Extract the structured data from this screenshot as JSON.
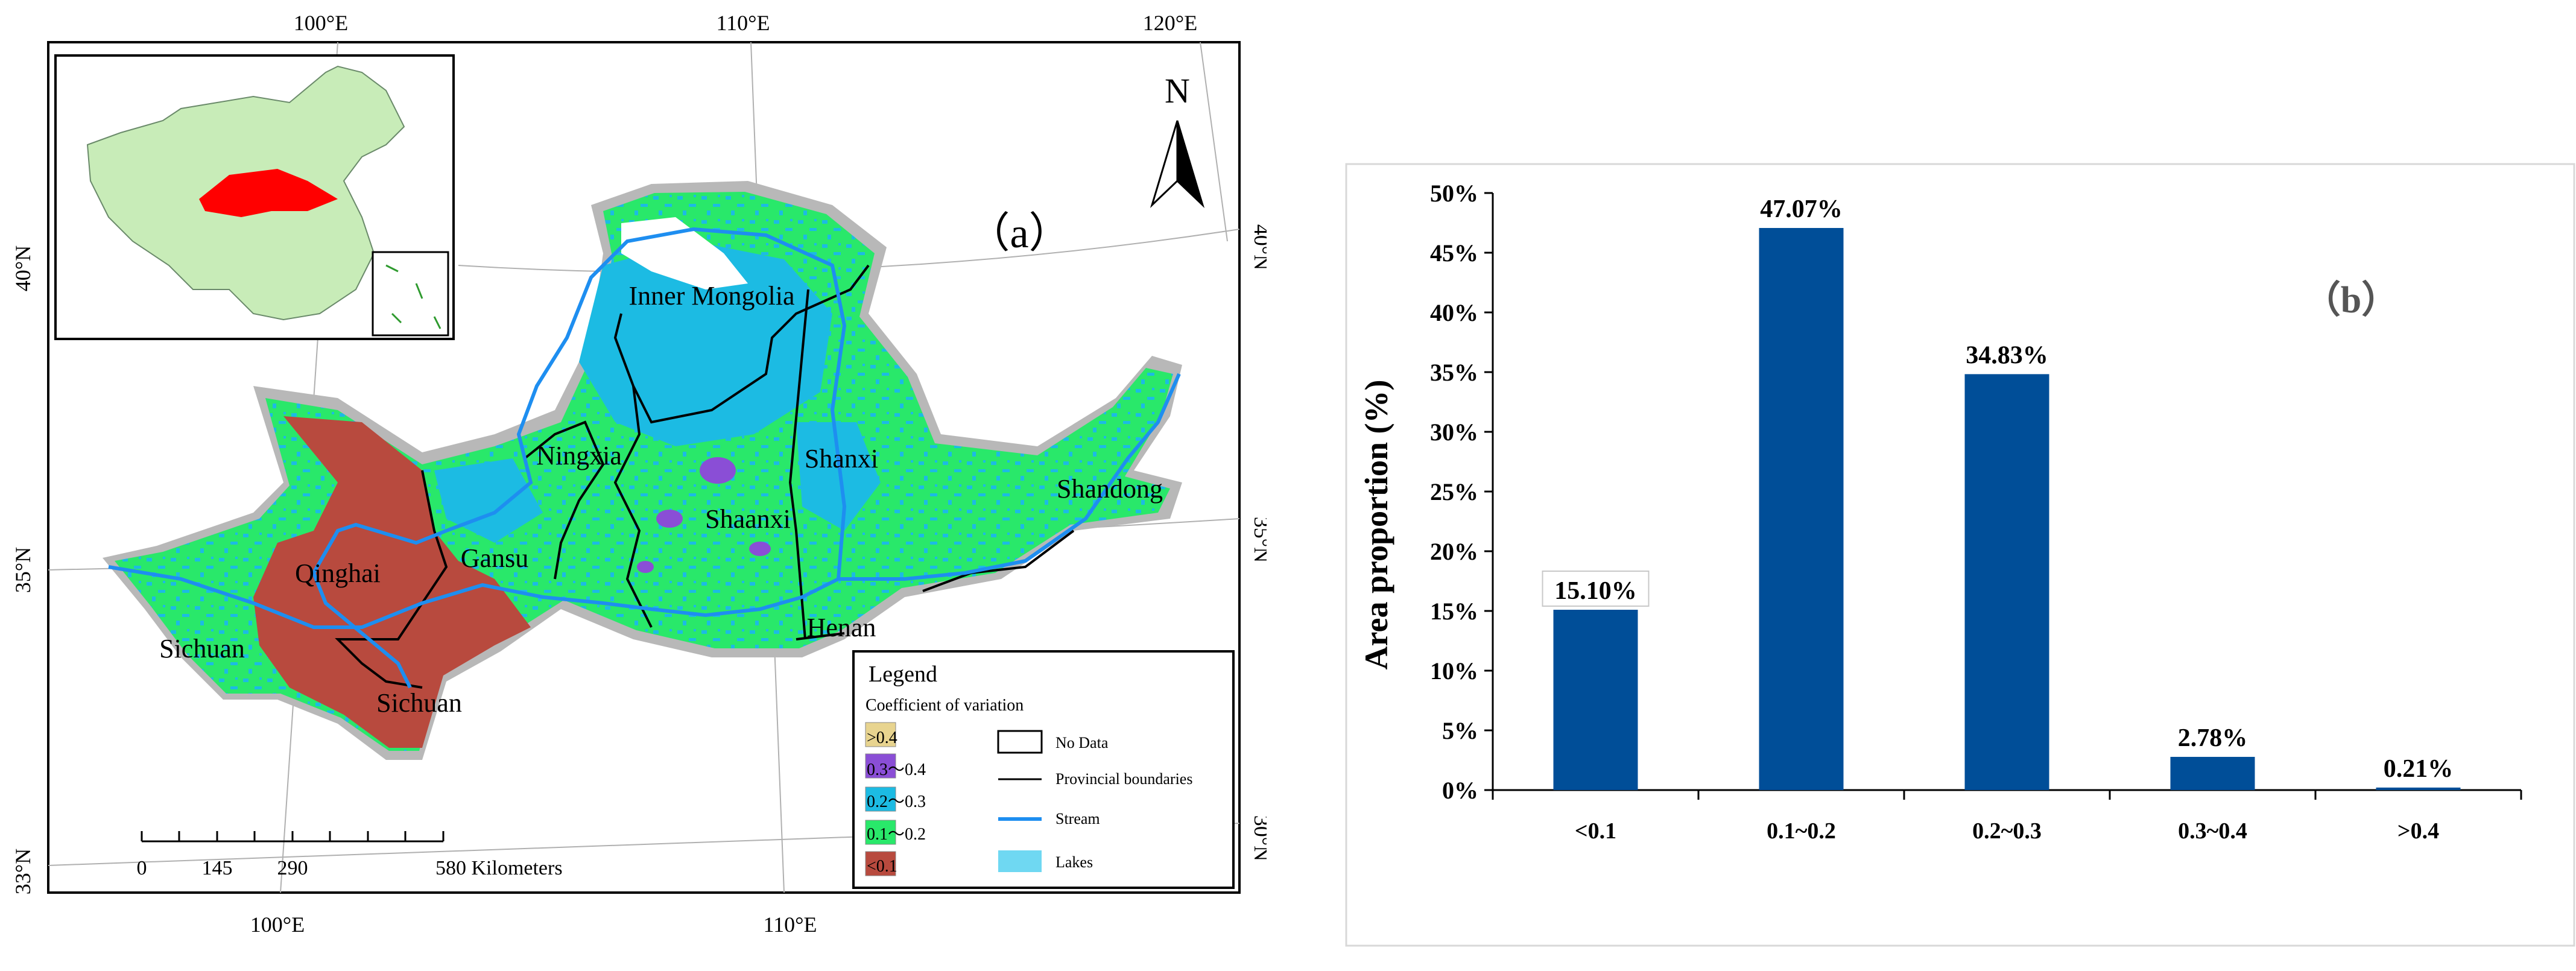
{
  "colors": {
    "gt04": "#e8d48f",
    "c03_04": "#8a4ed6",
    "c02_03": "#1cbbe3",
    "c01_02": "#29e86a",
    "lt01": "#b84a3e",
    "stream": "#1e8ef0",
    "lakes": "#6fd8f2",
    "buffer": "#b8b8b8",
    "china_land": "#c8ecb8",
    "yellow_river_basin": "#ff0000",
    "bar": "#004e98"
  },
  "map": {
    "panel_label": "（a）",
    "north_label": "N",
    "top_longitudes": [
      "100°E",
      "110°E",
      "120°E"
    ],
    "bottom_longitudes": [
      "100°E",
      "110°E"
    ],
    "left_latitudes": [
      "40°N",
      "35°N",
      "33°N"
    ],
    "right_latitudes": [
      "40°N",
      "35°N",
      "30°N"
    ],
    "province_labels": [
      "Inner Mongolia",
      "Ningxia",
      "Shanxi",
      "Shandong",
      "Shaanxi",
      "Gansu",
      "Qinghai",
      "Henan",
      "Sichuan",
      "Sichuan"
    ],
    "scale_ticks": [
      "0",
      "145",
      "290",
      "580 Kilometers"
    ],
    "legend": {
      "title": "Legend",
      "subtitle": "Coefficient of variation",
      "classes": [
        ">0.4",
        "0.3～0.4",
        "0.2～0.3",
        "0.1～0.2",
        "<0.1"
      ],
      "others": [
        "No Data",
        "Provincial boundaries",
        "Stream",
        "Lakes"
      ]
    }
  },
  "chart_data": {
    "type": "bar",
    "panel_label": "（b）",
    "categories": [
      "<0.1",
      "0.1~0.2",
      "0.2~0.3",
      "0.3~0.4",
      ">0.4"
    ],
    "values": [
      15.1,
      47.07,
      34.83,
      2.78,
      0.21
    ],
    "data_labels": [
      "15.10%",
      "47.07%",
      "34.83%",
      "2.78%",
      "0.21%"
    ],
    "ylabel": "Area proportion (%)",
    "xlabel": "",
    "ylim": [
      0,
      50
    ],
    "yticks": [
      0,
      5,
      10,
      15,
      20,
      25,
      30,
      35,
      40,
      45,
      50
    ],
    "ytick_labels": [
      "0%",
      "5%",
      "10%",
      "15%",
      "20%",
      "25%",
      "30%",
      "35%",
      "40%",
      "45%",
      "50%"
    ],
    "grid": false,
    "legend": "none"
  }
}
